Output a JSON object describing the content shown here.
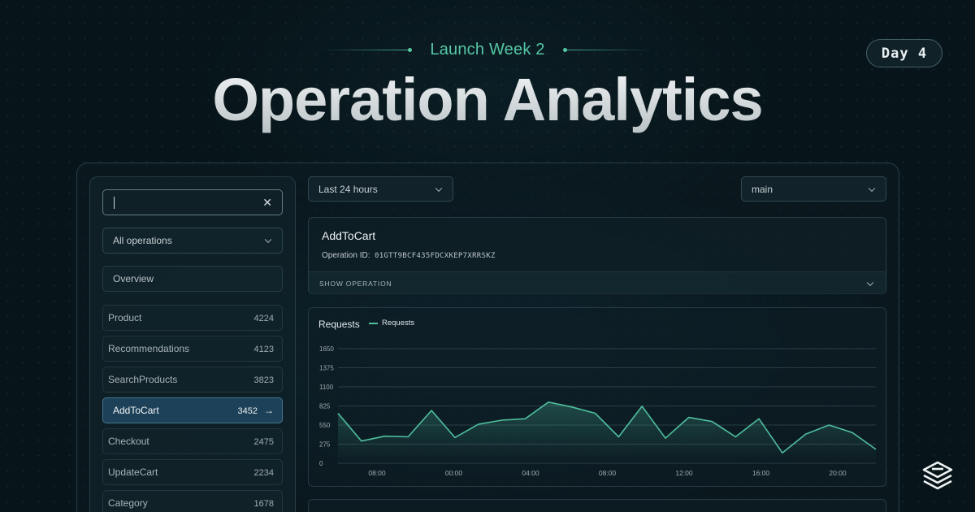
{
  "hero": {
    "eyebrow": "Launch Week 2",
    "title": "Operation Analytics",
    "day_badge": "Day 4"
  },
  "sidebar": {
    "search": {
      "value": "",
      "placeholder": ""
    },
    "filter_select": "All operations",
    "overview_label": "Overview",
    "operations": [
      {
        "name": "Product",
        "count": "4224",
        "active": false
      },
      {
        "name": "Recommendations",
        "count": "4123",
        "active": false
      },
      {
        "name": "SearchProducts",
        "count": "3823",
        "active": false
      },
      {
        "name": "AddToCart",
        "count": "3452",
        "active": true
      },
      {
        "name": "Checkout",
        "count": "2475",
        "active": false
      },
      {
        "name": "UpdateCart",
        "count": "2234",
        "active": false
      },
      {
        "name": "Category",
        "count": "1678",
        "active": false
      }
    ]
  },
  "toolbar": {
    "time_range": "Last 24 hours",
    "branch": "main"
  },
  "operation": {
    "name": "AddToCart",
    "id_label": "Operation ID:",
    "id": "01GTT9BCF435FDCXKEP7XRRSKZ",
    "show_label": "SHOW OPERATION"
  },
  "chart_panel": {
    "title": "Requests",
    "legend": "Requests"
  },
  "colors": {
    "accent": "#56c7a4",
    "series": "#4fbf9d",
    "active_item": "#1d4158",
    "background": "#07151a"
  },
  "icons": {
    "clear": "close-icon",
    "dropdown": "chevron-down-icon",
    "active_arrow": "arrow-right-icon",
    "brand": "stacked-layers-logo"
  },
  "chart_data": {
    "type": "area",
    "title": "Requests",
    "xlabel": "",
    "ylabel": "",
    "ylim": [
      0,
      1650
    ],
    "yticks": [
      0,
      275,
      550,
      825,
      1100,
      1375,
      1650
    ],
    "xtick_labels": [
      "08:00",
      "00:00",
      "04:00",
      "08:00",
      "12:00",
      "16:00",
      "20:00"
    ],
    "grid": true,
    "legend_position": "top-left",
    "series": [
      {
        "name": "Requests",
        "values": [
          720,
          320,
          390,
          380,
          760,
          370,
          560,
          620,
          640,
          880,
          810,
          720,
          380,
          820,
          360,
          660,
          600,
          380,
          640,
          150,
          420,
          550,
          440,
          200
        ]
      }
    ]
  }
}
